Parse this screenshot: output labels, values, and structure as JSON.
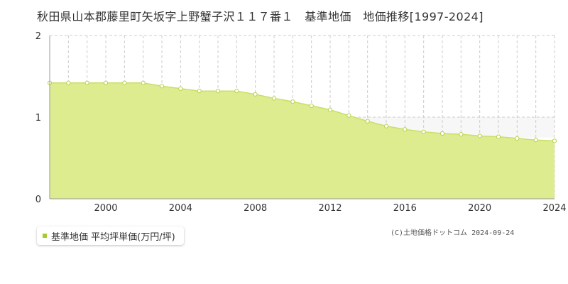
{
  "title": "秋田県山本郡藤里町矢坂字上野蟹子沢１１７番１　基準地価　地価推移[1997-2024]",
  "legend": {
    "label": "基準地価 平均坪単価(万円/坪)"
  },
  "copyright": "(C)土地価格ドットコム 2024-09-24",
  "colors": {
    "fill": "#dcec8f",
    "line": "#c9df6a",
    "marker_stroke": "#b5d34a",
    "legend_swatch": "#a6cc2b",
    "grid": "#cccccc",
    "band": "#f7f7f7"
  },
  "chart_data": {
    "type": "area",
    "title": "秋田県山本郡藤里町矢坂字上野蟹子沢１１７番１　基準地価　地価推移[1997-2024]",
    "xlabel": "",
    "ylabel": "",
    "xlim": [
      1997,
      2024
    ],
    "ylim": [
      0,
      2
    ],
    "x_ticks": [
      "2000",
      "2004",
      "2008",
      "2012",
      "2016",
      "2020",
      "2024"
    ],
    "y_ticks": [
      "0",
      "1",
      "2"
    ],
    "grid": true,
    "legend_position": "bottom-left",
    "series": [
      {
        "name": "基準地価 平均坪単価(万円/坪)",
        "x": [
          1997,
          1998,
          1999,
          2000,
          2001,
          2002,
          2003,
          2004,
          2005,
          2006,
          2007,
          2008,
          2009,
          2010,
          2011,
          2012,
          2013,
          2014,
          2015,
          2016,
          2017,
          2018,
          2019,
          2020,
          2021,
          2022,
          2023,
          2024
        ],
        "values": [
          1.42,
          1.42,
          1.42,
          1.42,
          1.42,
          1.42,
          1.38,
          1.35,
          1.32,
          1.32,
          1.32,
          1.28,
          1.23,
          1.19,
          1.14,
          1.09,
          1.02,
          0.95,
          0.89,
          0.85,
          0.82,
          0.8,
          0.79,
          0.77,
          0.76,
          0.74,
          0.72,
          0.71
        ]
      }
    ]
  }
}
